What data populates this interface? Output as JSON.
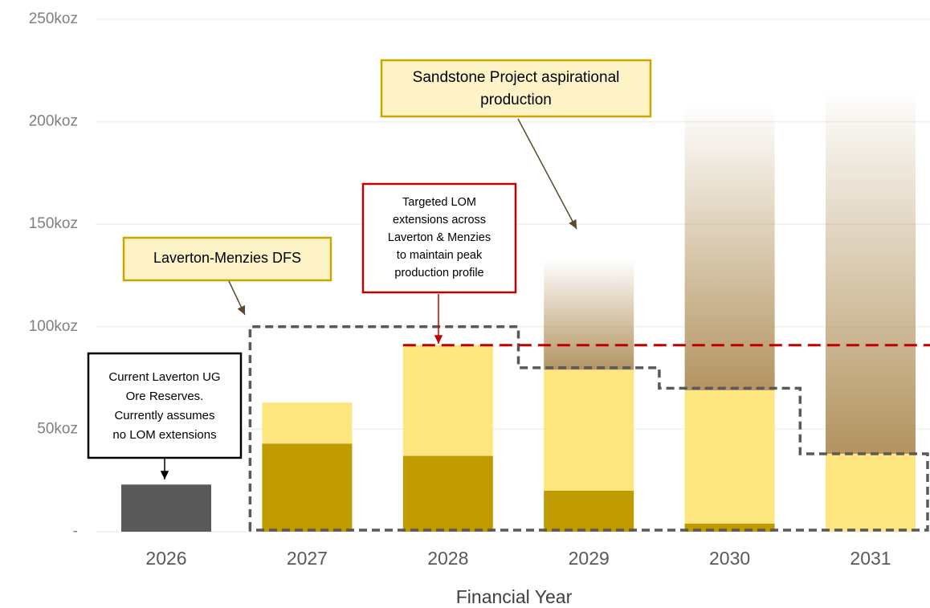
{
  "chart_data": {
    "type": "bar",
    "stacked": true,
    "x_label": "Financial Year",
    "categories": [
      "2026",
      "2027",
      "2028",
      "2029",
      "2030",
      "2031"
    ],
    "series": [
      {
        "color": "#595959",
        "values": [
          23,
          null,
          null,
          null,
          null,
          null
        ]
      },
      {
        "color": "#bf9b00",
        "values": [
          null,
          43,
          37,
          20,
          4,
          null
        ]
      },
      {
        "color": "#fde680",
        "values": [
          null,
          20,
          54,
          59,
          65,
          38
        ]
      },
      {
        "color": "#b39460",
        "gradient": true,
        "values": [
          null,
          null,
          null,
          54,
          139,
          178
        ]
      }
    ],
    "ylim": [
      0,
      250
    ],
    "yticks": [
      {
        "value": 0,
        "label": "-"
      },
      {
        "value": 50,
        "label": "50koz"
      },
      {
        "value": 100,
        "label": "100koz"
      },
      {
        "value": 150,
        "label": "150koz"
      },
      {
        "value": 200,
        "label": "200koz"
      },
      {
        "value": 250,
        "label": "250koz"
      }
    ],
    "grid": true,
    "target_line": 91,
    "outline_values": [
      null,
      100,
      100,
      80,
      70,
      38
    ],
    "annotations": [
      {
        "lines": [
          "Laverton-Menzies DFS"
        ]
      },
      {
        "lines": [
          "Sandstone Project aspirational",
          "production"
        ]
      },
      {
        "lines": [
          "Targeted LOM",
          "extensions across",
          "Laverton & Menzies",
          "to maintain peak",
          "production profile"
        ]
      },
      {
        "lines": [
          "Current Laverton UG",
          "Ore Reserves.",
          "Currently assumes",
          "no LOM extensions"
        ]
      }
    ]
  }
}
